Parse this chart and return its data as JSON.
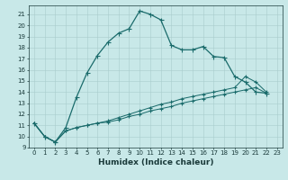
{
  "xlabel": "Humidex (Indice chaleur)",
  "bg_color": "#c8e8e8",
  "line_color": "#1a6b6b",
  "grid_color": "#a8cccc",
  "font_color": "#1a3a3a",
  "xlim": [
    -0.5,
    23.5
  ],
  "ylim": [
    9,
    21.8
  ],
  "yticks": [
    9,
    10,
    11,
    12,
    13,
    14,
    15,
    16,
    17,
    18,
    19,
    20,
    21
  ],
  "xticks": [
    0,
    1,
    2,
    3,
    4,
    5,
    6,
    7,
    8,
    9,
    10,
    11,
    12,
    13,
    14,
    15,
    16,
    17,
    18,
    19,
    20,
    21,
    22,
    23
  ],
  "series1_x": [
    0,
    1,
    2,
    3,
    4,
    5,
    6,
    7,
    8,
    9,
    10,
    11,
    12,
    13,
    14,
    15,
    16,
    17,
    18,
    19,
    20,
    21,
    22
  ],
  "series1_y": [
    11.2,
    10.0,
    9.5,
    10.8,
    13.5,
    15.7,
    17.3,
    18.5,
    19.3,
    19.7,
    21.3,
    21.0,
    20.5,
    18.2,
    17.8,
    17.8,
    18.1,
    17.2,
    17.1,
    15.4,
    14.9,
    14.0,
    13.9
  ],
  "series2_x": [
    0,
    1,
    2,
    3,
    4,
    5,
    6,
    7,
    8,
    9,
    10,
    11,
    12,
    13,
    14,
    15,
    16,
    17,
    18,
    19,
    20,
    21,
    22
  ],
  "series2_y": [
    11.2,
    10.0,
    9.5,
    10.5,
    10.8,
    11.0,
    11.2,
    11.4,
    11.7,
    12.0,
    12.3,
    12.6,
    12.9,
    13.1,
    13.4,
    13.6,
    13.8,
    14.0,
    14.2,
    14.4,
    15.4,
    14.9,
    14.0
  ],
  "series3_x": [
    0,
    1,
    2,
    3,
    4,
    5,
    6,
    7,
    8,
    9,
    10,
    11,
    12,
    13,
    14,
    15,
    16,
    17,
    18,
    19,
    20,
    21,
    22
  ],
  "series3_y": [
    11.2,
    10.0,
    9.5,
    10.5,
    10.8,
    11.0,
    11.2,
    11.3,
    11.5,
    11.8,
    12.0,
    12.3,
    12.5,
    12.7,
    13.0,
    13.2,
    13.4,
    13.6,
    13.8,
    14.0,
    14.2,
    14.4,
    13.9
  ],
  "markersize": 2.0,
  "linewidth": 0.9,
  "tick_fontsize": 5,
  "xlabel_fontsize": 6.5
}
